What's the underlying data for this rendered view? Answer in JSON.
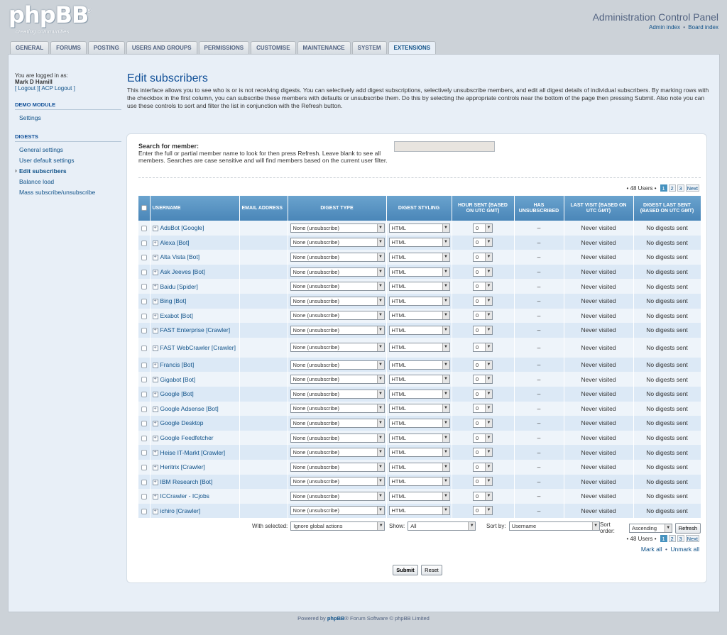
{
  "logo": {
    "text": "phpBB",
    "reg": "®",
    "tagline": "creating communities"
  },
  "header": {
    "title": "Administration Control Panel",
    "link_admin": "Admin index",
    "sep": "•",
    "link_board": "Board index"
  },
  "tabs": [
    "General",
    "Forums",
    "Posting",
    "Users and groups",
    "Permissions",
    "Customise",
    "Maintenance",
    "System",
    "Extensions"
  ],
  "sidebar": {
    "logged_in_as": "You are logged in as:",
    "username": "Mark D Hamill",
    "logout": "[ Logout ]",
    "acp_logout": "[ ACP Logout ]",
    "section1": "DEMO MODULE",
    "section1_items": [
      "Settings"
    ],
    "section2": "DIGESTS",
    "section2_items": [
      "General settings",
      "User default settings",
      "Edit subscribers",
      "Balance load",
      "Mass subscribe/unsubscribe"
    ]
  },
  "page": {
    "title": "Edit subscribers",
    "intro": "This interface allows you to see who is or is not receiving digests. You can selectively add digest subscriptions, selectively unsubscribe members, and edit all digest details of individual subscribers. By marking rows with the checkbox in the first column, you can subscribe these members with defaults or unsubscribe them. Do this by selecting the appropriate controls near the bottom of the page then pressing Submit. Also note you can use these controls to sort and filter the list in conjunction with the Refresh button."
  },
  "search": {
    "label": "Search for member:",
    "help": "Enter the full or partial member name to look for then press Refresh. Leave blank to see all members. Searches are case sensitive and will find members based on the current user filter.",
    "value": ""
  },
  "pager": {
    "count": "• 48 Users •",
    "pages": [
      "1",
      "2",
      "3"
    ],
    "next": "Next"
  },
  "columns": {
    "username": "Username",
    "email": "Email address",
    "digest_type": "Digest type",
    "digest_styling": "Digest styling",
    "hour_sent": "Hour sent (based on UTC GMT)",
    "unsubscribed": "Has unsubscribed",
    "last_visit": "Last visit (based on UTC GMT)",
    "last_sent": "Digest last sent (based on UTC GMT)"
  },
  "row_defaults": {
    "digest_type": "None (unsubscribe)",
    "digest_styling": "HTML",
    "hour_sent": "0",
    "unsubscribed": "–",
    "last_visit": "Never visited",
    "last_sent": "No digests sent"
  },
  "rows": [
    "AdsBot [Google]",
    "Alexa [Bot]",
    "Alta Vista [Bot]",
    "Ask Jeeves [Bot]",
    "Baidu [Spider]",
    "Bing [Bot]",
    "Exabot [Bot]",
    "FAST Enterprise [Crawler]",
    "FAST WebCrawler [Crawler]",
    "Francis [Bot]",
    "Gigabot [Bot]",
    "Google [Bot]",
    "Google Adsense [Bot]",
    "Google Desktop",
    "Google Feedfetcher",
    "Heise IT-Markt [Crawler]",
    "Heritrix [Crawler]",
    "IBM Research [Bot]",
    "ICCrawler - ICjobs",
    "ichiro [Crawler]"
  ],
  "controls": {
    "with_selected_label": "With selected:",
    "with_selected_value": "Ignore global actions",
    "show_label": "Show:",
    "show_value": "All",
    "sort_by_label": "Sort by:",
    "sort_by_value": "Username",
    "sort_order_label": "Sort order:",
    "sort_order_value": "Ascending",
    "refresh": "Refresh"
  },
  "mark": {
    "mark_all": "Mark all",
    "sep": "•",
    "unmark_all": "Unmark all"
  },
  "buttons": {
    "submit": "Submit",
    "reset": "Reset"
  },
  "footer": {
    "prefix": "Powered by",
    "brand": "phpBB",
    "suffix": "® Forum Software © phpBB Limited"
  }
}
